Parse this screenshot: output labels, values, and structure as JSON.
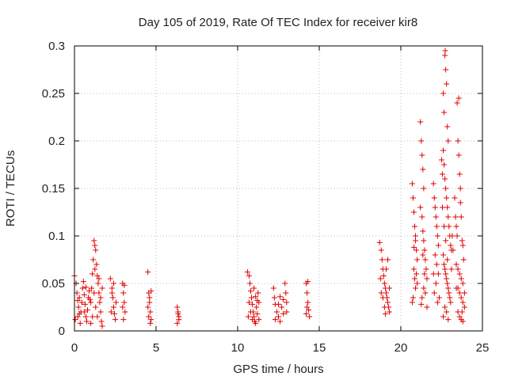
{
  "chart_data": {
    "type": "scatter",
    "title": "Day 105 of 2019, Rate Of TEC Index for receiver kir8",
    "xlabel": "GPS time / hours",
    "ylabel": "ROTI / TECUs",
    "xlim": [
      0,
      25
    ],
    "ylim": [
      0,
      0.3
    ],
    "x_ticks": [
      0,
      5,
      10,
      15,
      20,
      25
    ],
    "x_tick_labels": [
      "0",
      "5",
      "10",
      "15",
      "20",
      "25"
    ],
    "y_ticks": [
      0,
      0.05,
      0.1,
      0.15,
      0.2,
      0.25,
      0.3
    ],
    "y_tick_labels": [
      "0",
      "0.05",
      "0.1",
      "0.15",
      "0.2",
      "0.25",
      "0.3"
    ],
    "grid": true,
    "marker": "+",
    "marker_color": "#e00000",
    "series": [
      {
        "name": "ROTI",
        "points": [
          [
            0.0,
            0.058
          ],
          [
            0.1,
            0.05
          ],
          [
            0.15,
            0.04
          ],
          [
            0.2,
            0.032
          ],
          [
            0.25,
            0.025
          ],
          [
            0.3,
            0.018
          ],
          [
            0.05,
            0.012
          ],
          [
            0.35,
            0.008
          ],
          [
            0.4,
            0.02
          ],
          [
            0.45,
            0.03
          ],
          [
            0.5,
            0.045
          ],
          [
            0.55,
            0.052
          ],
          [
            0.6,
            0.038
          ],
          [
            0.65,
            0.028
          ],
          [
            0.7,
            0.015
          ],
          [
            0.75,
            0.01
          ],
          [
            0.8,
            0.022
          ],
          [
            0.85,
            0.035
          ],
          [
            0.9,
            0.042
          ],
          [
            0.95,
            0.033
          ],
          [
            0.2,
            0.015
          ],
          [
            0.3,
            0.035
          ],
          [
            0.6,
            0.02
          ],
          [
            0.7,
            0.046
          ],
          [
            1.0,
            0.03
          ],
          [
            1.05,
            0.045
          ],
          [
            1.1,
            0.06
          ],
          [
            1.15,
            0.075
          ],
          [
            1.2,
            0.095
          ],
          [
            1.25,
            0.09
          ],
          [
            1.3,
            0.085
          ],
          [
            1.35,
            0.07
          ],
          [
            1.4,
            0.058
          ],
          [
            1.45,
            0.05
          ],
          [
            1.5,
            0.04
          ],
          [
            1.55,
            0.03
          ],
          [
            1.6,
            0.02
          ],
          [
            1.65,
            0.01
          ],
          [
            1.7,
            0.005
          ],
          [
            1.2,
            0.04
          ],
          [
            1.3,
            0.025
          ],
          [
            1.4,
            0.015
          ],
          [
            1.5,
            0.055
          ],
          [
            1.6,
            0.035
          ],
          [
            1.1,
            0.015
          ],
          [
            1.0,
            0.008
          ],
          [
            1.7,
            0.045
          ],
          [
            1.25,
            0.065
          ],
          [
            2.2,
            0.055
          ],
          [
            2.3,
            0.045
          ],
          [
            2.35,
            0.035
          ],
          [
            2.4,
            0.025
          ],
          [
            2.45,
            0.018
          ],
          [
            2.5,
            0.012
          ],
          [
            2.55,
            0.03
          ],
          [
            2.3,
            0.04
          ],
          [
            2.4,
            0.05
          ],
          [
            2.25,
            0.02
          ],
          [
            2.95,
            0.05
          ],
          [
            3.0,
            0.04
          ],
          [
            3.05,
            0.03
          ],
          [
            3.1,
            0.02
          ],
          [
            3.0,
            0.012
          ],
          [
            3.05,
            0.048
          ],
          [
            2.95,
            0.025
          ],
          [
            4.5,
            0.062
          ],
          [
            4.55,
            0.04
          ],
          [
            4.6,
            0.03
          ],
          [
            4.65,
            0.02
          ],
          [
            4.7,
            0.012
          ],
          [
            4.5,
            0.025
          ],
          [
            4.6,
            0.035
          ],
          [
            4.7,
            0.042
          ],
          [
            4.55,
            0.015
          ],
          [
            4.65,
            0.008
          ],
          [
            6.3,
            0.025
          ],
          [
            6.35,
            0.018
          ],
          [
            6.4,
            0.012
          ],
          [
            6.3,
            0.008
          ],
          [
            6.35,
            0.02
          ],
          [
            6.4,
            0.015
          ],
          [
            10.6,
            0.062
          ],
          [
            10.7,
            0.058
          ],
          [
            10.75,
            0.05
          ],
          [
            10.8,
            0.042
          ],
          [
            10.85,
            0.035
          ],
          [
            10.9,
            0.028
          ],
          [
            10.95,
            0.02
          ],
          [
            11.0,
            0.015
          ],
          [
            11.05,
            0.01
          ],
          [
            11.1,
            0.008
          ],
          [
            11.15,
            0.025
          ],
          [
            11.2,
            0.032
          ],
          [
            11.25,
            0.04
          ],
          [
            11.3,
            0.03
          ],
          [
            10.8,
            0.02
          ],
          [
            10.9,
            0.012
          ],
          [
            11.0,
            0.045
          ],
          [
            11.1,
            0.036
          ],
          [
            11.2,
            0.018
          ],
          [
            10.7,
            0.03
          ],
          [
            10.65,
            0.015
          ],
          [
            11.3,
            0.012
          ],
          [
            12.2,
            0.045
          ],
          [
            12.25,
            0.035
          ],
          [
            12.3,
            0.028
          ],
          [
            12.4,
            0.02
          ],
          [
            12.5,
            0.015
          ],
          [
            12.6,
            0.01
          ],
          [
            12.7,
            0.025
          ],
          [
            12.8,
            0.033
          ],
          [
            12.9,
            0.05
          ],
          [
            12.95,
            0.04
          ],
          [
            13.0,
            0.03
          ],
          [
            12.3,
            0.012
          ],
          [
            12.6,
            0.036
          ],
          [
            12.8,
            0.018
          ],
          [
            13.0,
            0.02
          ],
          [
            12.5,
            0.028
          ],
          [
            14.2,
            0.05
          ],
          [
            14.25,
            0.04
          ],
          [
            14.3,
            0.03
          ],
          [
            14.35,
            0.022
          ],
          [
            14.4,
            0.015
          ],
          [
            14.2,
            0.018
          ],
          [
            14.3,
            0.052
          ],
          [
            14.25,
            0.025
          ],
          [
            18.7,
            0.093
          ],
          [
            18.8,
            0.085
          ],
          [
            18.85,
            0.075
          ],
          [
            18.9,
            0.065
          ],
          [
            18.95,
            0.058
          ],
          [
            19.0,
            0.05
          ],
          [
            19.05,
            0.045
          ],
          [
            19.1,
            0.04
          ],
          [
            19.15,
            0.035
          ],
          [
            19.2,
            0.03
          ],
          [
            19.25,
            0.025
          ],
          [
            19.3,
            0.02
          ],
          [
            18.8,
            0.04
          ],
          [
            18.9,
            0.035
          ],
          [
            19.0,
            0.025
          ],
          [
            19.1,
            0.065
          ],
          [
            19.2,
            0.075
          ],
          [
            18.75,
            0.055
          ],
          [
            19.3,
            0.045
          ],
          [
            19.05,
            0.018
          ],
          [
            20.7,
            0.155
          ],
          [
            20.75,
            0.14
          ],
          [
            20.8,
            0.125
          ],
          [
            20.85,
            0.11
          ],
          [
            20.9,
            0.095
          ],
          [
            20.95,
            0.085
          ],
          [
            21.0,
            0.075
          ],
          [
            20.8,
            0.065
          ],
          [
            20.85,
            0.055
          ],
          [
            20.9,
            0.045
          ],
          [
            20.75,
            0.035
          ],
          [
            20.7,
            0.03
          ],
          [
            20.95,
            0.06
          ],
          [
            21.0,
            0.05
          ],
          [
            20.9,
            0.1
          ],
          [
            20.8,
            0.088
          ],
          [
            21.2,
            0.22
          ],
          [
            21.25,
            0.2
          ],
          [
            21.3,
            0.185
          ],
          [
            21.35,
            0.17
          ],
          [
            21.4,
            0.15
          ],
          [
            21.2,
            0.13
          ],
          [
            21.3,
            0.12
          ],
          [
            21.35,
            0.105
          ],
          [
            21.4,
            0.095
          ],
          [
            21.45,
            0.085
          ],
          [
            21.5,
            0.075
          ],
          [
            21.55,
            0.065
          ],
          [
            21.6,
            0.055
          ],
          [
            21.4,
            0.045
          ],
          [
            21.3,
            0.035
          ],
          [
            21.25,
            0.028
          ],
          [
            21.5,
            0.04
          ],
          [
            21.6,
            0.025
          ],
          [
            21.45,
            0.06
          ],
          [
            21.35,
            0.08
          ],
          [
            22.0,
            0.155
          ],
          [
            22.05,
            0.14
          ],
          [
            22.1,
            0.13
          ],
          [
            22.15,
            0.12
          ],
          [
            22.2,
            0.11
          ],
          [
            22.25,
            0.1
          ],
          [
            22.3,
            0.09
          ],
          [
            22.1,
            0.08
          ],
          [
            22.2,
            0.07
          ],
          [
            22.3,
            0.06
          ],
          [
            22.15,
            0.05
          ],
          [
            22.05,
            0.04
          ],
          [
            22.25,
            0.03
          ],
          [
            22.35,
            0.035
          ],
          [
            22.0,
            0.06
          ],
          [
            22.5,
            0.18
          ],
          [
            22.55,
            0.165
          ],
          [
            22.6,
            0.25
          ],
          [
            22.65,
            0.23
          ],
          [
            22.7,
            0.29
          ],
          [
            22.72,
            0.295
          ],
          [
            22.75,
            0.275
          ],
          [
            22.8,
            0.26
          ],
          [
            22.85,
            0.215
          ],
          [
            22.9,
            0.2
          ],
          [
            22.6,
            0.19
          ],
          [
            22.65,
            0.175
          ],
          [
            22.7,
            0.16
          ],
          [
            22.75,
            0.15
          ],
          [
            22.8,
            0.14
          ],
          [
            22.85,
            0.13
          ],
          [
            22.9,
            0.12
          ],
          [
            22.95,
            0.11
          ],
          [
            23.0,
            0.1
          ],
          [
            23.05,
            0.09
          ],
          [
            23.1,
            0.085
          ],
          [
            22.6,
            0.08
          ],
          [
            22.65,
            0.07
          ],
          [
            22.7,
            0.065
          ],
          [
            22.75,
            0.06
          ],
          [
            22.8,
            0.055
          ],
          [
            22.85,
            0.05
          ],
          [
            22.9,
            0.045
          ],
          [
            22.95,
            0.04
          ],
          [
            23.0,
            0.035
          ],
          [
            23.05,
            0.03
          ],
          [
            22.7,
            0.025
          ],
          [
            22.8,
            0.02
          ],
          [
            22.6,
            0.015
          ],
          [
            22.9,
            0.012
          ],
          [
            23.1,
            0.065
          ],
          [
            23.15,
            0.1
          ],
          [
            23.2,
            0.085
          ],
          [
            22.55,
            0.13
          ],
          [
            22.65,
            0.11
          ],
          [
            22.75,
            0.095
          ],
          [
            22.85,
            0.075
          ],
          [
            23.3,
            0.14
          ],
          [
            23.35,
            0.12
          ],
          [
            23.4,
            0.11
          ],
          [
            23.45,
            0.1
          ],
          [
            23.5,
            0.2
          ],
          [
            23.55,
            0.185
          ],
          [
            23.6,
            0.165
          ],
          [
            23.65,
            0.15
          ],
          [
            23.7,
            0.12
          ],
          [
            23.75,
            0.095
          ],
          [
            23.8,
            0.09
          ],
          [
            23.85,
            0.075
          ],
          [
            23.4,
            0.07
          ],
          [
            23.5,
            0.065
          ],
          [
            23.6,
            0.06
          ],
          [
            23.7,
            0.055
          ],
          [
            23.8,
            0.05
          ],
          [
            23.5,
            0.045
          ],
          [
            23.6,
            0.04
          ],
          [
            23.7,
            0.035
          ],
          [
            23.8,
            0.03
          ],
          [
            23.9,
            0.025
          ],
          [
            23.5,
            0.02
          ],
          [
            23.6,
            0.015
          ],
          [
            23.7,
            0.012
          ],
          [
            23.8,
            0.01
          ],
          [
            23.55,
            0.245
          ],
          [
            23.45,
            0.24
          ],
          [
            23.65,
            0.135
          ],
          [
            23.4,
            0.045
          ],
          [
            23.9,
            0.04
          ],
          [
            23.75,
            0.02
          ]
        ]
      }
    ]
  }
}
